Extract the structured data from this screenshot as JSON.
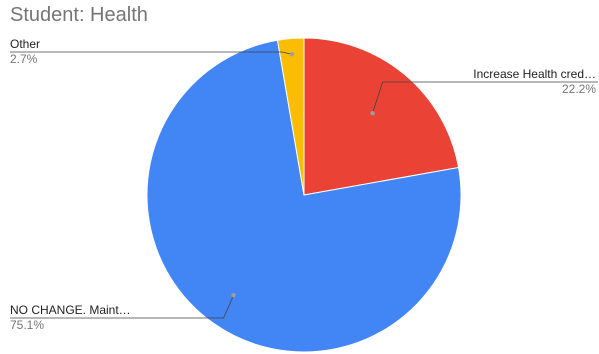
{
  "chart_data": {
    "type": "pie",
    "title": "Student: Health",
    "slices": [
      {
        "label": "Increase Health cred…",
        "percent_label": "22.2%",
        "value": 22.2,
        "color": "#EA4335",
        "side": "right"
      },
      {
        "label": "NO CHANGE.  Maint…",
        "percent_label": "75.1%",
        "value": 75.1,
        "color": "#4285F4",
        "side": "left"
      },
      {
        "label": "Other",
        "percent_label": "2.7%",
        "value": 2.7,
        "color": "#FBBC04",
        "side": "left"
      }
    ]
  }
}
